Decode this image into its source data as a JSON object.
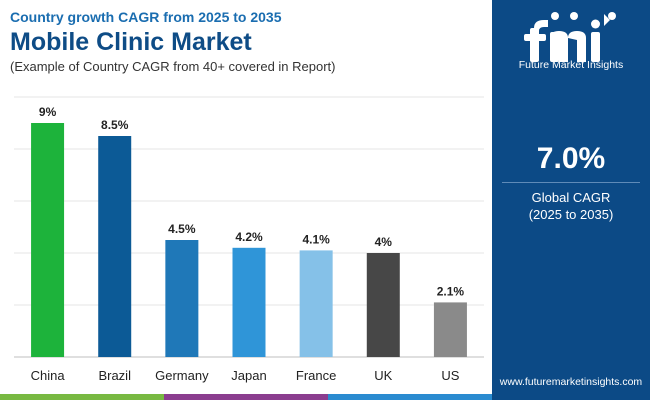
{
  "header": {
    "subtitle": "Country growth CAGR from 2025 to 2035",
    "title": "Mobile Clinic Market",
    "note": "(Example of Country CAGR from 40+ covered in Report)"
  },
  "side_panel": {
    "logo_text": "Future Market Insights",
    "cagr_value": "7.0%",
    "cagr_label": "Global CAGR",
    "cagr_years": "(2025 to 2035)",
    "website": "www.futuremarketinsights.com",
    "background_color": "#0c4a86"
  },
  "strip_colors": [
    "#78b942",
    "#8b3d8f",
    "#2a8bd0"
  ],
  "chart_data": {
    "type": "bar",
    "title": "",
    "xlabel": "",
    "ylabel": "",
    "categories": [
      "China",
      "Brazil",
      "Germany",
      "Japan",
      "France",
      "UK",
      "US"
    ],
    "values": [
      9,
      8.5,
      4.5,
      4.2,
      4.1,
      4,
      2.1
    ],
    "value_labels": [
      "9%",
      "8.5%",
      "4.5%",
      "4.2%",
      "4.1%",
      "4%",
      "2.1%"
    ],
    "colors": [
      "#1db33b",
      "#0c5a96",
      "#1f78b8",
      "#2f95d8",
      "#85c1e8",
      "#474747",
      "#8a8a8a"
    ],
    "ylim": [
      0,
      10
    ],
    "grid": true,
    "legend": "none"
  }
}
